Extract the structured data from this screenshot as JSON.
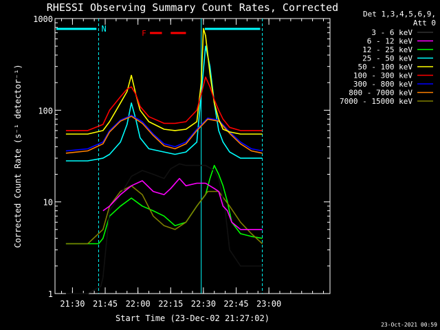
{
  "chart_data": {
    "type": "line",
    "title": "RHESSI Observing Summary Count Rates, Corrected",
    "xlabel": "Start Time (23-Dec-02 21:27:02)",
    "ylabel": "Corrected Count Rate (s⁻¹ detector⁻¹)",
    "y_scale": "log",
    "ylim": [
      1,
      1000
    ],
    "y_ticks": [
      1,
      10,
      100,
      1000
    ],
    "y_tick_labels": [
      "1",
      "10",
      "100",
      "1000"
    ],
    "x_range_minutes": [
      -5,
      121
    ],
    "x_ticks": [
      3,
      18,
      33,
      48,
      63,
      78,
      93
    ],
    "x_tick_labels": [
      "21:30",
      "21:45",
      "22:00",
      "22:15",
      "22:30",
      "22:45",
      "23:00"
    ],
    "legend_header": [
      "Det 1,3,4,5,6,9,",
      "Att 0"
    ],
    "legend_position": "top-right",
    "annotations": [
      {
        "text": "N",
        "color": "#00ffff"
      },
      {
        "text": "F",
        "color": "#ff0000"
      }
    ],
    "series": [
      {
        "name": "3 - 6 keV",
        "color": "#000000",
        "x": [
          0,
          10,
          16,
          17,
          20,
          25,
          30,
          35,
          40,
          45,
          48,
          52,
          55,
          60,
          64,
          68,
          70,
          71,
          73,
          75,
          80,
          85,
          90
        ],
        "y": [
          1,
          1,
          1.2,
          1.5,
          8,
          12,
          19,
          22,
          20,
          18,
          23,
          26,
          25,
          25,
          25,
          22,
          18,
          14,
          8,
          3,
          2,
          2,
          2
        ]
      },
      {
        "name": "6 - 12 keV",
        "color": "#ff00ff",
        "x": [
          17,
          20,
          25,
          30,
          35,
          40,
          45,
          48,
          52,
          55,
          60,
          64,
          68,
          70,
          72,
          74,
          76,
          80,
          85,
          90
        ],
        "y": [
          8,
          9,
          12,
          15,
          17,
          13,
          12,
          14,
          18,
          15,
          16,
          16,
          14,
          13,
          9,
          8,
          6,
          5,
          5,
          5
        ]
      },
      {
        "name": "12 - 25 keV",
        "color": "#00ff00",
        "x": [
          0,
          10,
          15,
          17,
          20,
          25,
          30,
          35,
          40,
          45,
          50,
          55,
          60,
          64,
          66,
          68,
          70,
          72,
          74,
          76,
          80,
          85,
          90
        ],
        "y": [
          3.5,
          3.5,
          3.5,
          4,
          7,
          9,
          11,
          9,
          8,
          7,
          5.5,
          6,
          9,
          12,
          18,
          25,
          20,
          15,
          10,
          6,
          4.5,
          4.2,
          4
        ]
      },
      {
        "name": "25 - 50 keV",
        "color": "#00ffff",
        "x": [
          0,
          10,
          17,
          20,
          25,
          28,
          30,
          32,
          34,
          38,
          45,
          50,
          55,
          60,
          62,
          64,
          66,
          68,
          70,
          72,
          75,
          80,
          85,
          90
        ],
        "y": [
          28,
          28,
          30,
          33,
          45,
          70,
          120,
          80,
          50,
          38,
          35,
          33,
          35,
          45,
          150,
          500,
          300,
          120,
          60,
          45,
          35,
          30,
          30,
          30
        ]
      },
      {
        "name": "50 - 100 keV",
        "color": "#ffff00",
        "x": [
          0,
          10,
          17,
          20,
          25,
          28,
          30,
          32,
          34,
          38,
          45,
          50,
          55,
          60,
          62,
          63,
          64,
          66,
          68,
          70,
          72,
          75,
          80,
          85,
          90
        ],
        "y": [
          55,
          55,
          60,
          75,
          120,
          160,
          240,
          150,
          100,
          75,
          62,
          60,
          62,
          75,
          200,
          780,
          650,
          250,
          120,
          80,
          62,
          58,
          55,
          55,
          55
        ]
      },
      {
        "name": "100 - 300 keV",
        "color": "#ff0000",
        "x": [
          0,
          10,
          17,
          20,
          25,
          28,
          30,
          32,
          34,
          38,
          45,
          50,
          55,
          60,
          62,
          64,
          66,
          68,
          70,
          72,
          75,
          80,
          85,
          90
        ],
        "y": [
          60,
          60,
          70,
          100,
          140,
          170,
          180,
          150,
          110,
          85,
          72,
          72,
          75,
          100,
          150,
          230,
          180,
          130,
          100,
          80,
          65,
          60,
          60,
          60
        ]
      },
      {
        "name": "300 - 800 keV",
        "color": "#0000ff",
        "x": [
          0,
          10,
          17,
          20,
          25,
          30,
          35,
          40,
          45,
          50,
          55,
          60,
          65,
          70,
          75,
          80,
          85,
          90
        ],
        "y": [
          36,
          38,
          45,
          60,
          78,
          88,
          75,
          55,
          43,
          40,
          45,
          62,
          82,
          78,
          58,
          45,
          38,
          36
        ]
      },
      {
        "name": "800 - 7000 keV",
        "color": "#ff8000",
        "x": [
          0,
          10,
          17,
          20,
          25,
          30,
          35,
          40,
          45,
          50,
          55,
          60,
          65,
          70,
          75,
          80,
          85,
          90
        ],
        "y": [
          34,
          36,
          43,
          58,
          76,
          86,
          72,
          53,
          41,
          38,
          43,
          60,
          80,
          76,
          56,
          43,
          36,
          34
        ]
      },
      {
        "name": "7000 - 15000 keV",
        "color": "#808000",
        "x": [
          0,
          10,
          17,
          20,
          25,
          30,
          35,
          40,
          45,
          50,
          55,
          60,
          65,
          70,
          75,
          80,
          85,
          90
        ],
        "y": [
          3.5,
          3.5,
          5,
          9,
          13,
          15,
          12,
          7,
          5.5,
          5,
          6,
          9,
          13,
          13,
          9,
          6,
          4.5,
          3.5
        ]
      }
    ],
    "markers": {
      "cyan_verticals": [
        15,
        62,
        90
      ],
      "night_bars": [
        [
          -5,
          14
        ],
        [
          63,
          89
        ]
      ],
      "flare_dashes": [
        [
          38.5,
          44
        ],
        [
          48,
          55
        ]
      ]
    }
  },
  "timestamp": "23-Oct-2021 00:59"
}
